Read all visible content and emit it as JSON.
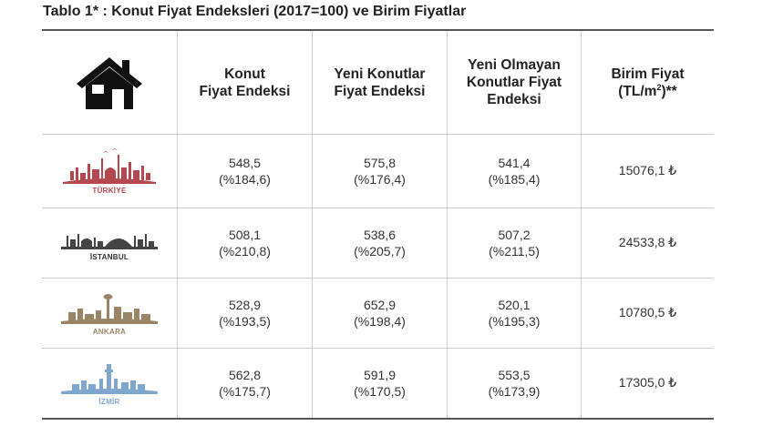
{
  "title": "Tablo 1* : Konut Fiyat Endeksleri (2017=100) ve Birim Fiyatlar",
  "headers": {
    "col1": [
      "Konut",
      "Fiyat Endeksi"
    ],
    "col2": [
      "Yeni Konutlar",
      "Fiyat Endeksi"
    ],
    "col3": [
      "Yeni Olmayan",
      "Konutlar Fiyat",
      "Endeksi"
    ],
    "col4_line1": "Birim Fiyat",
    "col4_line2_pre": "(TL/m",
    "col4_sup": "2",
    "col4_line2_post": ")**"
  },
  "icons": {
    "header": "house-icon"
  },
  "rows": [
    {
      "city": "TÜRKİYE",
      "icon": "turkiye-skyline-icon",
      "color": "#b5474f",
      "konut": [
        "548,5",
        "(%184,6)"
      ],
      "yeni": [
        "575,8",
        "(%176,4)"
      ],
      "yeni_olmayan": [
        "541,4",
        "(%185,4)"
      ],
      "birim": "15076,1 ₺"
    },
    {
      "city": "İSTANBUL",
      "icon": "istanbul-skyline-icon",
      "color": "#444444",
      "konut": [
        "508,1",
        "(%210,8)"
      ],
      "yeni": [
        "538,6",
        "(%205,7)"
      ],
      "yeni_olmayan": [
        "507,2",
        "(%211,5)"
      ],
      "birim": "24533,8 ₺"
    },
    {
      "city": "ANKARA",
      "icon": "ankara-skyline-icon",
      "color": "#9a8466",
      "konut": [
        "528,9",
        "(%193,5)"
      ],
      "yeni": [
        "652,9",
        "(%198,4)"
      ],
      "yeni_olmayan": [
        "520,1",
        "(%195,3)"
      ],
      "birim": "10780,5 ₺"
    },
    {
      "city": "İZMİR",
      "icon": "izmir-skyline-icon",
      "color": "#7fa6cf",
      "konut": [
        "562,8",
        "(%175,7)"
      ],
      "yeni": [
        "591,9",
        "(%170,5)"
      ],
      "yeni_olmayan": [
        "553,5",
        "(%173,9)"
      ],
      "birim": "17305,0 ₺"
    }
  ]
}
